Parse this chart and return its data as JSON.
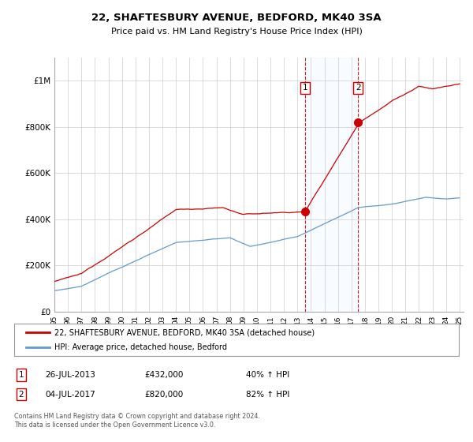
{
  "title": "22, SHAFTESBURY AVENUE, BEDFORD, MK40 3SA",
  "subtitle": "Price paid vs. HM Land Registry's House Price Index (HPI)",
  "legend_line1": "22, SHAFTESBURY AVENUE, BEDFORD, MK40 3SA (detached house)",
  "legend_line2": "HPI: Average price, detached house, Bedford",
  "annotation1_label": "1",
  "annotation1_date": "26-JUL-2013",
  "annotation1_price": "£432,000",
  "annotation1_hpi": "40% ↑ HPI",
  "annotation1_year": 2013.55,
  "annotation1_value": 432000,
  "annotation2_label": "2",
  "annotation2_date": "04-JUL-2017",
  "annotation2_price": "£820,000",
  "annotation2_hpi": "82% ↑ HPI",
  "annotation2_year": 2017.5,
  "annotation2_value": 820000,
  "red_line_color": "#cc0000",
  "blue_line_color": "#6699cc",
  "background_color": "#ffffff",
  "grid_color": "#cccccc",
  "shade_color": "#ddeeff",
  "footer": "Contains HM Land Registry data © Crown copyright and database right 2024.\nThis data is licensed under the Open Government Licence v3.0.",
  "ylim": [
    0,
    1100000
  ],
  "yticks": [
    0,
    200000,
    400000,
    600000,
    800000,
    1000000
  ],
  "ytick_labels": [
    "£0",
    "£200K",
    "£400K",
    "£600K",
    "£800K",
    "£1M"
  ],
  "year_start": 1995,
  "year_end": 2025
}
